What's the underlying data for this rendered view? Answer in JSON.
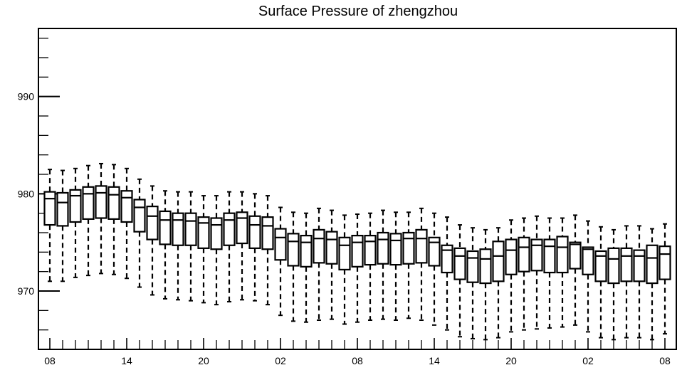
{
  "chart_data": {
    "type": "boxplot",
    "title": "Surface Pressure of zhengzhou",
    "xlabel": "",
    "ylabel": "",
    "ylim": [
      964,
      997
    ],
    "grid": false,
    "y_ticks": [
      970,
      980,
      990
    ],
    "y_tick_labels": [
      "970",
      "980",
      "990"
    ],
    "x_tick_labels": [
      "08",
      "14",
      "20",
      "02",
      "08",
      "14",
      "20",
      "02",
      "08"
    ],
    "series": [
      {
        "whisker_low": [
          971.0,
          971.0,
          971.4,
          971.6,
          971.8,
          971.7,
          971.3,
          970.4,
          969.6,
          969.2,
          969.1,
          969.0,
          968.8,
          968.6,
          968.9,
          969.1,
          969.0,
          968.6,
          967.5,
          966.9,
          966.8,
          967.0,
          967.1,
          966.6,
          966.8,
          967.0,
          967.1,
          967.0,
          967.2,
          967.0,
          966.5,
          966.0,
          965.3,
          965.1,
          965.0,
          965.2,
          965.8,
          966.0,
          966.1,
          966.2,
          966.3,
          966.5,
          965.8,
          965.2,
          965.0,
          965.2,
          965.2,
          965.0,
          965.6
        ],
        "q1": [
          976.8,
          976.7,
          977.1,
          977.4,
          977.5,
          977.4,
          977.1,
          976.1,
          975.3,
          974.8,
          974.7,
          974.7,
          974.4,
          974.3,
          974.7,
          974.9,
          974.4,
          974.3,
          973.2,
          972.6,
          972.5,
          972.9,
          972.8,
          972.2,
          972.5,
          972.7,
          972.8,
          972.7,
          972.8,
          972.9,
          972.6,
          971.9,
          971.2,
          970.9,
          970.8,
          971.0,
          971.7,
          972.0,
          972.1,
          971.9,
          971.9,
          972.3,
          971.7,
          971.0,
          970.8,
          971.0,
          971.0,
          970.8,
          971.2
        ],
        "median": [
          979.5,
          979.1,
          979.8,
          980.0,
          980.1,
          979.9,
          979.6,
          978.6,
          977.7,
          977.3,
          977.3,
          977.2,
          977.0,
          976.8,
          977.3,
          977.5,
          976.8,
          976.7,
          975.5,
          975.1,
          975.0,
          975.4,
          975.3,
          974.7,
          975.0,
          975.1,
          975.3,
          975.2,
          975.4,
          975.4,
          975.0,
          974.2,
          973.6,
          973.4,
          973.3,
          973.6,
          974.2,
          974.5,
          974.7,
          974.6,
          974.5,
          974.8,
          974.3,
          973.6,
          973.3,
          973.6,
          973.6,
          973.4,
          973.8
        ],
        "q3": [
          980.2,
          980.1,
          980.4,
          980.7,
          980.8,
          980.7,
          980.3,
          979.4,
          978.7,
          978.2,
          978.0,
          978.0,
          977.6,
          977.5,
          978.0,
          978.1,
          977.7,
          977.6,
          976.4,
          975.9,
          975.7,
          976.3,
          976.1,
          975.5,
          975.7,
          975.7,
          976.0,
          975.9,
          976.0,
          976.3,
          975.5,
          974.7,
          974.4,
          974.1,
          974.3,
          975.1,
          975.3,
          975.5,
          975.3,
          975.3,
          975.6,
          975.0,
          974.5,
          974.1,
          974.4,
          974.4,
          974.2,
          974.7,
          974.6
        ],
        "whisker_high": [
          982.5,
          982.4,
          982.6,
          982.9,
          983.1,
          983.0,
          982.6,
          981.5,
          980.8,
          980.3,
          980.2,
          980.2,
          979.8,
          979.8,
          980.2,
          980.2,
          980.0,
          979.8,
          978.6,
          978.1,
          978.0,
          978.5,
          978.3,
          977.8,
          977.9,
          978.0,
          978.3,
          978.1,
          978.1,
          978.5,
          978.0,
          977.6,
          976.8,
          976.5,
          976.3,
          976.5,
          977.3,
          977.5,
          977.7,
          977.5,
          977.5,
          977.8,
          977.2,
          976.6,
          976.3,
          976.7,
          976.7,
          976.4,
          976.9
        ]
      }
    ]
  }
}
